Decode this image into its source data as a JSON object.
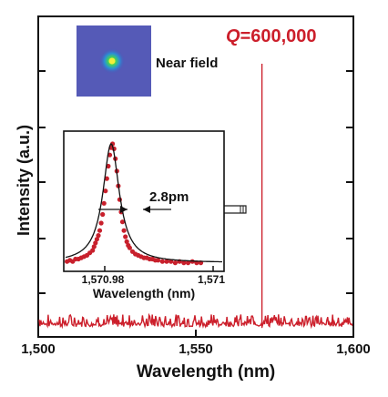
{
  "chart_data": [
    {
      "type": "line",
      "title": "",
      "xlabel": "Wavelength (nm)",
      "ylabel": "Intensity (a.u.)",
      "xlim": [
        1500,
        1600
      ],
      "ylim": [
        0,
        1
      ],
      "x_ticks": [
        "1,500",
        "1,550",
        "1,600"
      ],
      "y_ticks": [],
      "grid": false,
      "annotations": {
        "q_label_prefix": "Q",
        "q_label_value": "=600,000",
        "near_field_label": "Near field"
      },
      "series": [
        {
          "color": "#cc1f2b",
          "resonance_peak": {
            "x": 1570.98,
            "y": 1.0
          },
          "noise_floor_y": 0.02
        }
      ]
    },
    {
      "type": "scatter",
      "title": "",
      "xlabel": "Wavelength (nm)",
      "ylabel": "",
      "xlim": [
        1570.978,
        1571.0
      ],
      "ylim": [
        0,
        1
      ],
      "x_ticks": [
        "1,570.98",
        "1,571"
      ],
      "grid": false,
      "annotations": {
        "linewidth_label": "2.8pm"
      },
      "series": [
        {
          "color": "#c8202c",
          "fit_color": "#111111",
          "peak_center": 1570.9844,
          "fwhm_nm": 0.0028,
          "x": [
            1570.9782,
            1570.9786,
            1570.979,
            1570.9794,
            1570.9798,
            1570.9802,
            1570.9806,
            1570.981,
            1570.9814,
            1570.9818,
            1570.982,
            1570.9822,
            1570.9824,
            1570.9826,
            1570.9828,
            1570.983,
            1570.9832,
            1570.9834,
            1570.9836,
            1570.9838,
            1570.984,
            1570.9842,
            1570.9844,
            1570.9846,
            1570.9848,
            1570.985,
            1570.9852,
            1570.9854,
            1570.9856,
            1570.9858,
            1570.986,
            1570.9862,
            1570.9864,
            1570.9866,
            1570.9868,
            1570.987,
            1570.9874,
            1570.9878,
            1570.9882,
            1570.9886,
            1570.989,
            1570.9894,
            1570.9898,
            1570.9902,
            1570.9906,
            1570.991,
            1570.9916,
            1570.9922,
            1570.9928,
            1570.9934,
            1570.994,
            1570.9946,
            1570.9952,
            1570.9958,
            1570.9964,
            1570.997
          ],
          "y": [
            0.05,
            0.06,
            0.05,
            0.07,
            0.07,
            0.08,
            0.09,
            0.1,
            0.12,
            0.14,
            0.17,
            0.2,
            0.23,
            0.26,
            0.3,
            0.36,
            0.43,
            0.52,
            0.62,
            0.72,
            0.82,
            0.91,
            0.97,
            1.0,
            0.96,
            0.88,
            0.78,
            0.66,
            0.55,
            0.45,
            0.37,
            0.3,
            0.25,
            0.21,
            0.18,
            0.16,
            0.13,
            0.11,
            0.1,
            0.09,
            0.08,
            0.08,
            0.07,
            0.07,
            0.06,
            0.06,
            0.05,
            0.05,
            0.05,
            0.04,
            0.05,
            0.04,
            0.04,
            0.05,
            0.04,
            0.04
          ]
        }
      ]
    }
  ]
}
